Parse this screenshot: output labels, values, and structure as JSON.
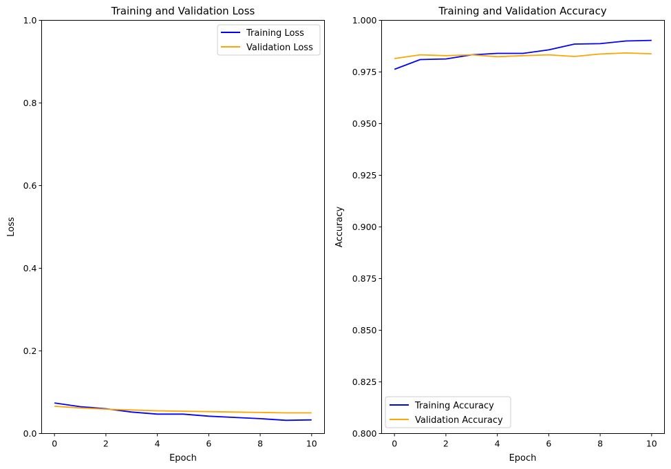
{
  "chart_data": [
    {
      "type": "line",
      "title": "Training and Validation Loss",
      "xlabel": "Epoch",
      "ylabel": "Loss",
      "xlim": [
        -0.5,
        10.5
      ],
      "ylim": [
        0,
        1.0
      ],
      "xticks": [
        "0",
        "2",
        "4",
        "6",
        "8",
        "10"
      ],
      "yticks": [
        "0.0",
        "0.2",
        "0.4",
        "0.6",
        "0.8",
        "1.0"
      ],
      "legend_position": "top-right",
      "x": [
        0,
        1,
        2,
        3,
        4,
        5,
        6,
        7,
        8,
        9,
        10
      ],
      "series": [
        {
          "name": "Training Loss",
          "color": "#0000ff",
          "values": [
            0.074,
            0.065,
            0.06,
            0.052,
            0.047,
            0.047,
            0.042,
            0.039,
            0.036,
            0.032,
            0.033
          ]
        },
        {
          "name": "Validation Loss",
          "color": "#ffa500",
          "values": [
            0.066,
            0.062,
            0.059,
            0.057,
            0.055,
            0.054,
            0.053,
            0.052,
            0.051,
            0.05,
            0.05
          ]
        }
      ]
    },
    {
      "type": "line",
      "title": "Training and Validation Accuracy",
      "xlabel": "Epoch",
      "ylabel": "Accuracy",
      "xlim": [
        -0.5,
        10.5
      ],
      "ylim": [
        0.8,
        1.0
      ],
      "xticks": [
        "0",
        "2",
        "4",
        "6",
        "8",
        "10"
      ],
      "yticks": [
        "0.800",
        "0.825",
        "0.850",
        "0.875",
        "0.900",
        "0.925",
        "0.950",
        "0.975",
        "1.000"
      ],
      "legend_position": "bottom-left",
      "x": [
        0,
        1,
        2,
        3,
        4,
        5,
        6,
        7,
        8,
        9,
        10
      ],
      "series": [
        {
          "name": "Training Accuracy",
          "color": "#0000ff",
          "values": [
            0.9763,
            0.981,
            0.9813,
            0.9833,
            0.984,
            0.984,
            0.9857,
            0.9885,
            0.9887,
            0.99,
            0.9903
          ]
        },
        {
          "name": "Validation Accuracy",
          "color": "#ffa500",
          "values": [
            0.9815,
            0.9833,
            0.9829,
            0.9833,
            0.9824,
            0.9829,
            0.9833,
            0.9825,
            0.9837,
            0.9842,
            0.9838
          ]
        }
      ]
    }
  ]
}
